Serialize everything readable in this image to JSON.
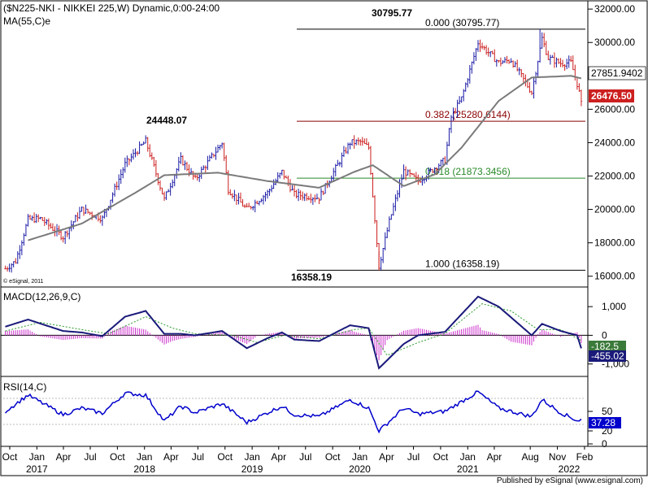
{
  "chart_data": {
    "type": "candlestick",
    "title": "($N225-NKI - NIKKEI 225,W) Dynamic,0:00-24:00",
    "ma_label": "MA(55,C)e",
    "macd_label": "MACD(12,26,9,C)",
    "rsi_label": "RSI(14,C)",
    "copyright": "© eSignal, 2011",
    "footer": "Published by eSignal (www.esignal.com)",
    "price_axis": {
      "ticks": [
        "32000.00",
        "30000.00",
        "28000.00",
        "26000.00",
        "24000.00",
        "22000.00",
        "20000.00",
        "18000.00",
        "16000.00"
      ],
      "ylim": [
        15500,
        32300
      ]
    },
    "macd_axis": {
      "ticks": [
        "1,000",
        "0",
        "-1,000"
      ]
    },
    "rsi_axis": {
      "ticks": [
        "50",
        "20",
        "0"
      ]
    },
    "x_month_labels": [
      "Oct",
      "Jan",
      "Apr",
      "Jul",
      "Oct",
      "Jan",
      "Apr",
      "Jul",
      "Oct",
      "Jan",
      "Apr",
      "Jul",
      "Oct",
      "Jan",
      "Apr",
      "Jul",
      "Oct",
      "Jan",
      "Apr",
      "Aug",
      "Nov",
      "Feb"
    ],
    "x_year_labels": [
      "2017",
      "2018",
      "2019",
      "2020",
      "2021",
      "2022"
    ],
    "fib_levels": [
      {
        "label": "0.000 (30795.77)",
        "value": 30795.77
      },
      {
        "label": "0.382 (25280.6144)",
        "value": 25280.6144
      },
      {
        "label": "0.618 (21873.3456)",
        "value": 21873.3456
      },
      {
        "label": "1.000 (16358.19)",
        "value": 16358.19
      }
    ],
    "annotations": [
      {
        "label": "30795.77",
        "value": 30795.77,
        "date": "2021-09"
      },
      {
        "label": "24448.07",
        "value": 24448.07,
        "date": "2018-10"
      },
      {
        "label": "16358.19",
        "value": 16358.19,
        "date": "2020-03"
      }
    ],
    "current_price_label": "26476.50",
    "ma_value_label": "27851.9402",
    "macd_value_labels": [
      "-182.5",
      "-455.02"
    ],
    "rsi_value_label": "37.28",
    "colors": {
      "up": "#1a1aa6",
      "down": "#cc1f1f",
      "ma": "#7a7a7a",
      "macd": "#1a1a7a",
      "signal": "#2a9a2a",
      "hist": "#cc33cc",
      "fib_red": "#8b0000",
      "fib_green": "#2a8a2a",
      "rsi": "#0000cc"
    },
    "weekly_close_anchors": [
      [
        "2016-09-30",
        16450
      ],
      [
        "2016-11-04",
        16900
      ],
      [
        "2016-12-16",
        19400
      ],
      [
        "2017-01-27",
        19450
      ],
      [
        "2017-04-14",
        18350
      ],
      [
        "2017-06-16",
        20000
      ],
      [
        "2017-08-25",
        19450
      ],
      [
        "2017-11-10",
        22700
      ],
      [
        "2018-01-19",
        24100
      ],
      [
        "2018-03-23",
        20600
      ],
      [
        "2018-05-18",
        23000
      ],
      [
        "2018-07-06",
        21800
      ],
      [
        "2018-10-05",
        24000
      ],
      [
        "2018-10-26",
        21200
      ],
      [
        "2018-12-28",
        20000
      ],
      [
        "2019-03-08",
        21000
      ],
      [
        "2019-04-26",
        22250
      ],
      [
        "2019-06-07",
        20900
      ],
      [
        "2019-08-30",
        20700
      ],
      [
        "2019-12-13",
        24000
      ],
      [
        "2020-01-17",
        24050
      ],
      [
        "2020-02-14",
        23700
      ],
      [
        "2020-03-20",
        16600
      ],
      [
        "2020-04-24",
        19260
      ],
      [
        "2020-06-12",
        22300
      ],
      [
        "2020-07-31",
        21700
      ],
      [
        "2020-10-30",
        22970
      ],
      [
        "2020-11-20",
        25520
      ],
      [
        "2020-12-25",
        26650
      ],
      [
        "2021-02-19",
        30000
      ],
      [
        "2021-04-30",
        28800
      ],
      [
        "2021-06-11",
        28950
      ],
      [
        "2021-08-20",
        27010
      ],
      [
        "2021-09-24",
        30250
      ],
      [
        "2021-10-15",
        29070
      ],
      [
        "2021-11-26",
        28750
      ],
      [
        "2021-12-31",
        28790
      ],
      [
        "2022-01-21",
        27520
      ],
      [
        "2022-02-04",
        26476
      ]
    ],
    "macd_anchors": [
      [
        "2016-09-30",
        300
      ],
      [
        "2016-12-16",
        550
      ],
      [
        "2017-04-14",
        150
      ],
      [
        "2017-06-16",
        100
      ],
      [
        "2017-08-25",
        -30
      ],
      [
        "2017-11-10",
        650
      ],
      [
        "2018-01-19",
        850
      ],
      [
        "2018-03-23",
        50
      ],
      [
        "2018-05-18",
        50
      ],
      [
        "2018-07-06",
        0
      ],
      [
        "2018-10-05",
        150
      ],
      [
        "2018-12-28",
        -450
      ],
      [
        "2019-03-08",
        -100
      ],
      [
        "2019-04-26",
        100
      ],
      [
        "2019-06-07",
        -150
      ],
      [
        "2019-08-30",
        -200
      ],
      [
        "2019-12-13",
        350
      ],
      [
        "2020-02-14",
        250
      ],
      [
        "2020-03-20",
        -1150
      ],
      [
        "2020-06-12",
        -300
      ],
      [
        "2020-07-31",
        0
      ],
      [
        "2020-10-30",
        120
      ],
      [
        "2021-02-19",
        1350
      ],
      [
        "2021-04-30",
        1000
      ],
      [
        "2021-08-20",
        0
      ],
      [
        "2021-09-24",
        400
      ],
      [
        "2021-11-26",
        150
      ],
      [
        "2022-01-21",
        0
      ],
      [
        "2022-02-04",
        -455
      ]
    ],
    "signal_anchors": [
      [
        "2016-09-30",
        150
      ],
      [
        "2017-01-27",
        450
      ],
      [
        "2017-06-16",
        200
      ],
      [
        "2017-09-15",
        50
      ],
      [
        "2018-01-19",
        650
      ],
      [
        "2018-04-20",
        250
      ],
      [
        "2018-07-06",
        50
      ],
      [
        "2018-11-09",
        0
      ],
      [
        "2019-02-01",
        -250
      ],
      [
        "2019-05-03",
        0
      ],
      [
        "2019-08-30",
        -120
      ],
      [
        "2019-12-27",
        200
      ],
      [
        "2020-02-14",
        250
      ],
      [
        "2020-04-17",
        -700
      ],
      [
        "2020-07-31",
        -250
      ],
      [
        "2020-10-30",
        60
      ],
      [
        "2021-03-05",
        1100
      ],
      [
        "2021-06-11",
        850
      ],
      [
        "2021-09-10",
        200
      ],
      [
        "2021-11-26",
        200
      ],
      [
        "2022-02-04",
        -182
      ]
    ],
    "rsi_anchors": [
      [
        "2016-09-30",
        50
      ],
      [
        "2016-12-16",
        75
      ],
      [
        "2017-04-14",
        45
      ],
      [
        "2017-06-16",
        55
      ],
      [
        "2017-08-25",
        47
      ],
      [
        "2017-11-10",
        78
      ],
      [
        "2018-01-19",
        75
      ],
      [
        "2018-03-23",
        35
      ],
      [
        "2018-05-18",
        58
      ],
      [
        "2018-07-06",
        48
      ],
      [
        "2018-10-05",
        62
      ],
      [
        "2018-12-28",
        33
      ],
      [
        "2019-03-08",
        48
      ],
      [
        "2019-04-26",
        58
      ],
      [
        "2019-06-07",
        45
      ],
      [
        "2019-08-30",
        42
      ],
      [
        "2019-12-13",
        68
      ],
      [
        "2020-02-14",
        55
      ],
      [
        "2020-03-20",
        20
      ],
      [
        "2020-06-12",
        55
      ],
      [
        "2020-07-31",
        46
      ],
      [
        "2020-10-30",
        50
      ],
      [
        "2021-02-19",
        80
      ],
      [
        "2021-04-30",
        55
      ],
      [
        "2021-08-20",
        42
      ],
      [
        "2021-09-24",
        68
      ],
      [
        "2021-11-26",
        48
      ],
      [
        "2022-01-21",
        36
      ],
      [
        "2022-02-04",
        37.28
      ]
    ]
  }
}
